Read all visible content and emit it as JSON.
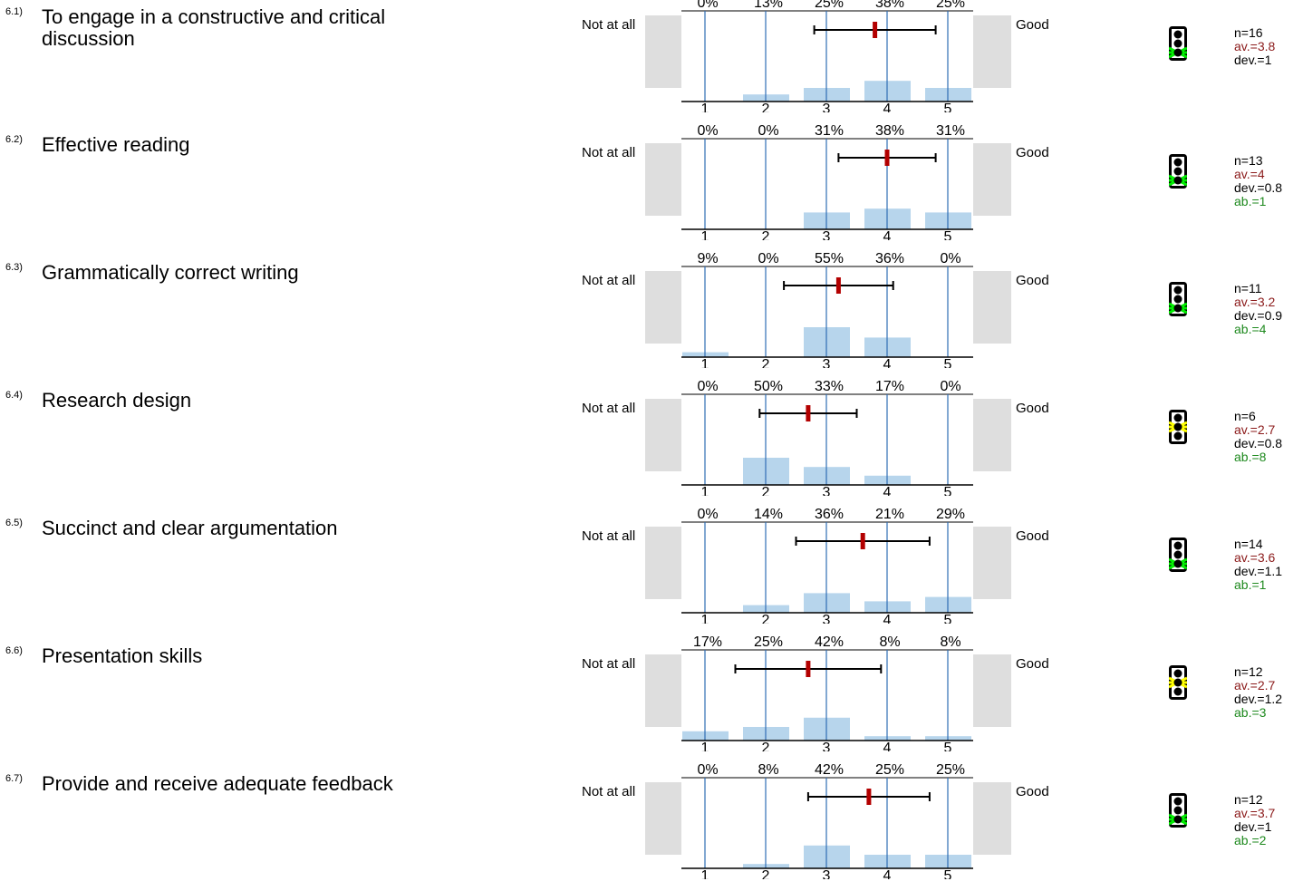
{
  "scale": {
    "left_label": "Not at all",
    "right_label": "Good",
    "ticks": [
      "1",
      "2",
      "3",
      "4",
      "5"
    ]
  },
  "colors": {
    "bar": "#b7d5ec",
    "grid": "#2f6db5",
    "mean": "#b30000",
    "band": "#dedede",
    "green": "#00ee00",
    "yellow": "#ffff00"
  },
  "items": [
    {
      "num": "6.1)",
      "text": "To engage in a constructive and critical discussion",
      "pct": [
        "0%",
        "13%",
        "25%",
        "38%",
        "25%"
      ],
      "n": "n=16",
      "av": "av.=3.8",
      "dev": "dev.=1",
      "ab": "",
      "light": "green"
    },
    {
      "num": "6.2)",
      "text": "Effective reading",
      "pct": [
        "0%",
        "0%",
        "31%",
        "38%",
        "31%"
      ],
      "n": "n=13",
      "av": "av.=4",
      "dev": "dev.=0.8",
      "ab": "ab.=1",
      "light": "green"
    },
    {
      "num": "6.3)",
      "text": "Grammatically correct writing",
      "pct": [
        "9%",
        "0%",
        "55%",
        "36%",
        "0%"
      ],
      "n": "n=11",
      "av": "av.=3.2",
      "dev": "dev.=0.9",
      "ab": "ab.=4",
      "light": "green"
    },
    {
      "num": "6.4)",
      "text": "Research design",
      "pct": [
        "0%",
        "50%",
        "33%",
        "17%",
        "0%"
      ],
      "n": "n=6",
      "av": "av.=2.7",
      "dev": "dev.=0.8",
      "ab": "ab.=8",
      "light": "yellow"
    },
    {
      "num": "6.5)",
      "text": "Succinct and clear argumentation",
      "pct": [
        "0%",
        "14%",
        "36%",
        "21%",
        "29%"
      ],
      "n": "n=14",
      "av": "av.=3.6",
      "dev": "dev.=1.1",
      "ab": "ab.=1",
      "light": "green"
    },
    {
      "num": "6.6)",
      "text": "Presentation skills",
      "pct": [
        "17%",
        "25%",
        "42%",
        "8%",
        "8%"
      ],
      "n": "n=12",
      "av": "av.=2.7",
      "dev": "dev.=1.2",
      "ab": "ab.=3",
      "light": "yellow"
    },
    {
      "num": "6.7)",
      "text": "Provide and receive adequate feedback",
      "pct": [
        "0%",
        "8%",
        "42%",
        "25%",
        "25%"
      ],
      "n": "n=12",
      "av": "av.=3.7",
      "dev": "dev.=1",
      "ab": "ab.=2",
      "light": "green"
    }
  ],
  "chart_data": {
    "type": "bar",
    "categories": [
      "1",
      "2",
      "3",
      "4",
      "5"
    ],
    "xlim": [
      1,
      5
    ],
    "series": [
      {
        "label": "6.1)",
        "values": [
          0,
          13,
          25,
          38,
          25
        ],
        "mean": 3.8,
        "sd": 1
      },
      {
        "label": "6.2)",
        "values": [
          0,
          0,
          31,
          38,
          31
        ],
        "mean": 4,
        "sd": 0.8
      },
      {
        "label": "6.3)",
        "values": [
          9,
          0,
          55,
          36,
          0
        ],
        "mean": 3.2,
        "sd": 0.9
      },
      {
        "label": "6.4)",
        "values": [
          0,
          50,
          33,
          17,
          0
        ],
        "mean": 2.7,
        "sd": 0.8
      },
      {
        "label": "6.5)",
        "values": [
          0,
          14,
          36,
          21,
          29
        ],
        "mean": 3.6,
        "sd": 1.1
      },
      {
        "label": "6.6)",
        "values": [
          17,
          25,
          42,
          8,
          8
        ],
        "mean": 2.7,
        "sd": 1.2
      },
      {
        "label": "6.7)",
        "values": [
          0,
          8,
          42,
          25,
          25
        ],
        "mean": 3.7,
        "sd": 1
      }
    ]
  }
}
